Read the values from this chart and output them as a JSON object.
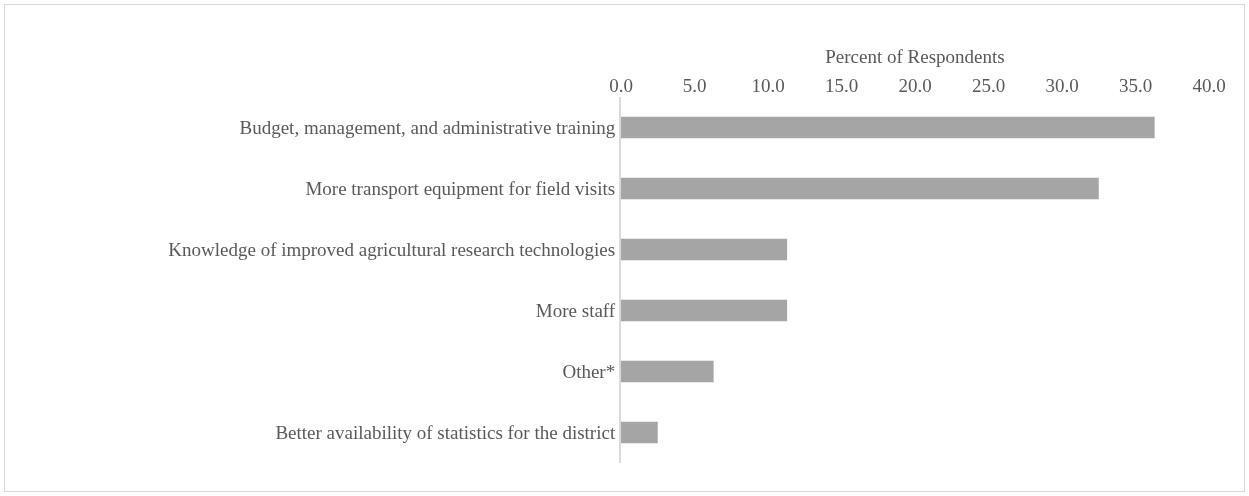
{
  "chart_data": {
    "type": "bar",
    "orientation": "horizontal",
    "xlabel": "Percent of Respondents",
    "categories": [
      "Budget, management, and administrative training",
      "More transport equipment for field visits",
      "Knowledge of improved agricultural research technologies",
      "More staff",
      "Other*",
      "Better availability of statistics for the district"
    ],
    "values": [
      36.3,
      32.5,
      11.3,
      11.3,
      6.3,
      2.5
    ],
    "color": "#a5a5a5",
    "xlim": [
      0,
      40
    ],
    "xticks": [
      {
        "value": 0,
        "label": "0.0"
      },
      {
        "value": 5,
        "label": "5.0"
      },
      {
        "value": 10,
        "label": "10.0"
      },
      {
        "value": 15,
        "label": "15.0"
      },
      {
        "value": 20,
        "label": "20.0"
      },
      {
        "value": 25,
        "label": "25.0"
      },
      {
        "value": 30,
        "label": "30.0"
      },
      {
        "value": 35,
        "label": "35.0"
      },
      {
        "value": 40,
        "label": "40.0"
      }
    ],
    "grid": false,
    "legend": false
  }
}
